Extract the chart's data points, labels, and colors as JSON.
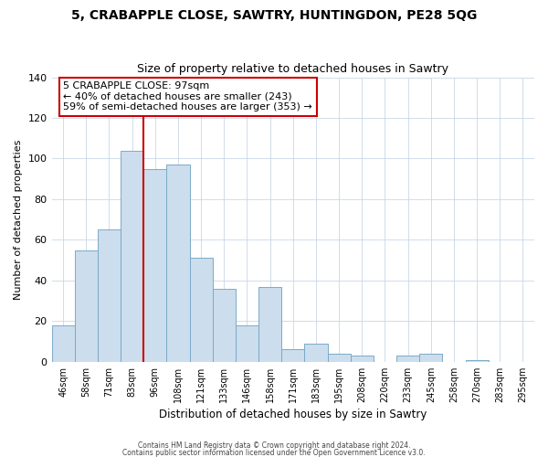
{
  "title": "5, CRABAPPLE CLOSE, SAWTRY, HUNTINGDON, PE28 5QG",
  "subtitle": "Size of property relative to detached houses in Sawtry",
  "xlabel": "Distribution of detached houses by size in Sawtry",
  "ylabel": "Number of detached properties",
  "bar_color": "#ccdded",
  "bar_edge_color": "#7aaac8",
  "categories": [
    "46sqm",
    "58sqm",
    "71sqm",
    "83sqm",
    "96sqm",
    "108sqm",
    "121sqm",
    "133sqm",
    "146sqm",
    "158sqm",
    "171sqm",
    "183sqm",
    "195sqm",
    "208sqm",
    "220sqm",
    "233sqm",
    "245sqm",
    "258sqm",
    "270sqm",
    "283sqm",
    "295sqm"
  ],
  "values": [
    18,
    55,
    65,
    104,
    95,
    97,
    51,
    36,
    18,
    37,
    6,
    9,
    4,
    3,
    0,
    3,
    4,
    0,
    1,
    0,
    0
  ],
  "ylim": [
    0,
    140
  ],
  "yticks": [
    0,
    20,
    40,
    60,
    80,
    100,
    120,
    140
  ],
  "vline_index": 4,
  "marker_label": "5 CRABAPPLE CLOSE: 97sqm",
  "annotation_line1": "← 40% of detached houses are smaller (243)",
  "annotation_line2": "59% of semi-detached houses are larger (353) →",
  "vline_color": "#cc0000",
  "annotation_box_color": "#ffffff",
  "annotation_box_edge": "#cc0000",
  "footer1": "Contains HM Land Registry data © Crown copyright and database right 2024.",
  "footer2": "Contains public sector information licensed under the Open Government Licence v3.0."
}
